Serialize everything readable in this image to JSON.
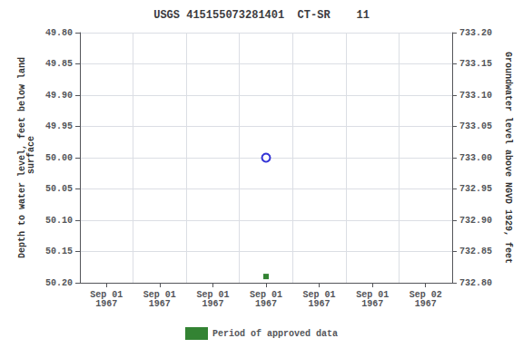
{
  "chart_data": {
    "type": "scatter",
    "title": "USGS 415155073281401  CT-SR    11",
    "y_label": "Depth to water level, feet below land\n surface",
    "y2_label": "Groundwater level above NGVD 1929, feet",
    "categories": [
      "Sep 01\n1967",
      "Sep 01\n1967",
      "Sep 01\n1967",
      "Sep 01\n1967",
      "Sep 01\n1967",
      "Sep 01\n1967",
      "Sep 02\n1967"
    ],
    "ylim": [
      50.2,
      49.8
    ],
    "yticks": [
      {
        "value": 49.8,
        "label": "49.80"
      },
      {
        "value": 49.85,
        "label": "49.85"
      },
      {
        "value": 49.9,
        "label": "49.90"
      },
      {
        "value": 49.95,
        "label": "49.95"
      },
      {
        "value": 50.0,
        "label": "50.00"
      },
      {
        "value": 50.05,
        "label": "50.05"
      },
      {
        "value": 50.1,
        "label": "50.10"
      },
      {
        "value": 50.15,
        "label": "50.15"
      },
      {
        "value": 50.2,
        "label": "50.20"
      }
    ],
    "y2lim": [
      732.8,
      733.2
    ],
    "y2ticks": [
      {
        "value": 732.8,
        "label": "732.80"
      },
      {
        "value": 732.85,
        "label": "732.85"
      },
      {
        "value": 732.9,
        "label": "732.90"
      },
      {
        "value": 732.95,
        "label": "732.95"
      },
      {
        "value": 733.0,
        "label": "733.00"
      },
      {
        "value": 733.05,
        "label": "733.05"
      },
      {
        "value": 733.1,
        "label": "733.10"
      },
      {
        "value": 733.15,
        "label": "733.15"
      },
      {
        "value": 733.2,
        "label": "733.20"
      }
    ],
    "series": [
      {
        "color": "#0000cc",
        "marker": "open_circle",
        "values": [
          null,
          null,
          null,
          50.0,
          null,
          null,
          null
        ]
      },
      {
        "name": "Period of approved data",
        "color": "#006400",
        "marker": "square",
        "values": [
          null,
          null,
          null,
          50.19,
          null,
          null,
          null
        ]
      }
    ],
    "grid": true,
    "legend": "bottom"
  }
}
